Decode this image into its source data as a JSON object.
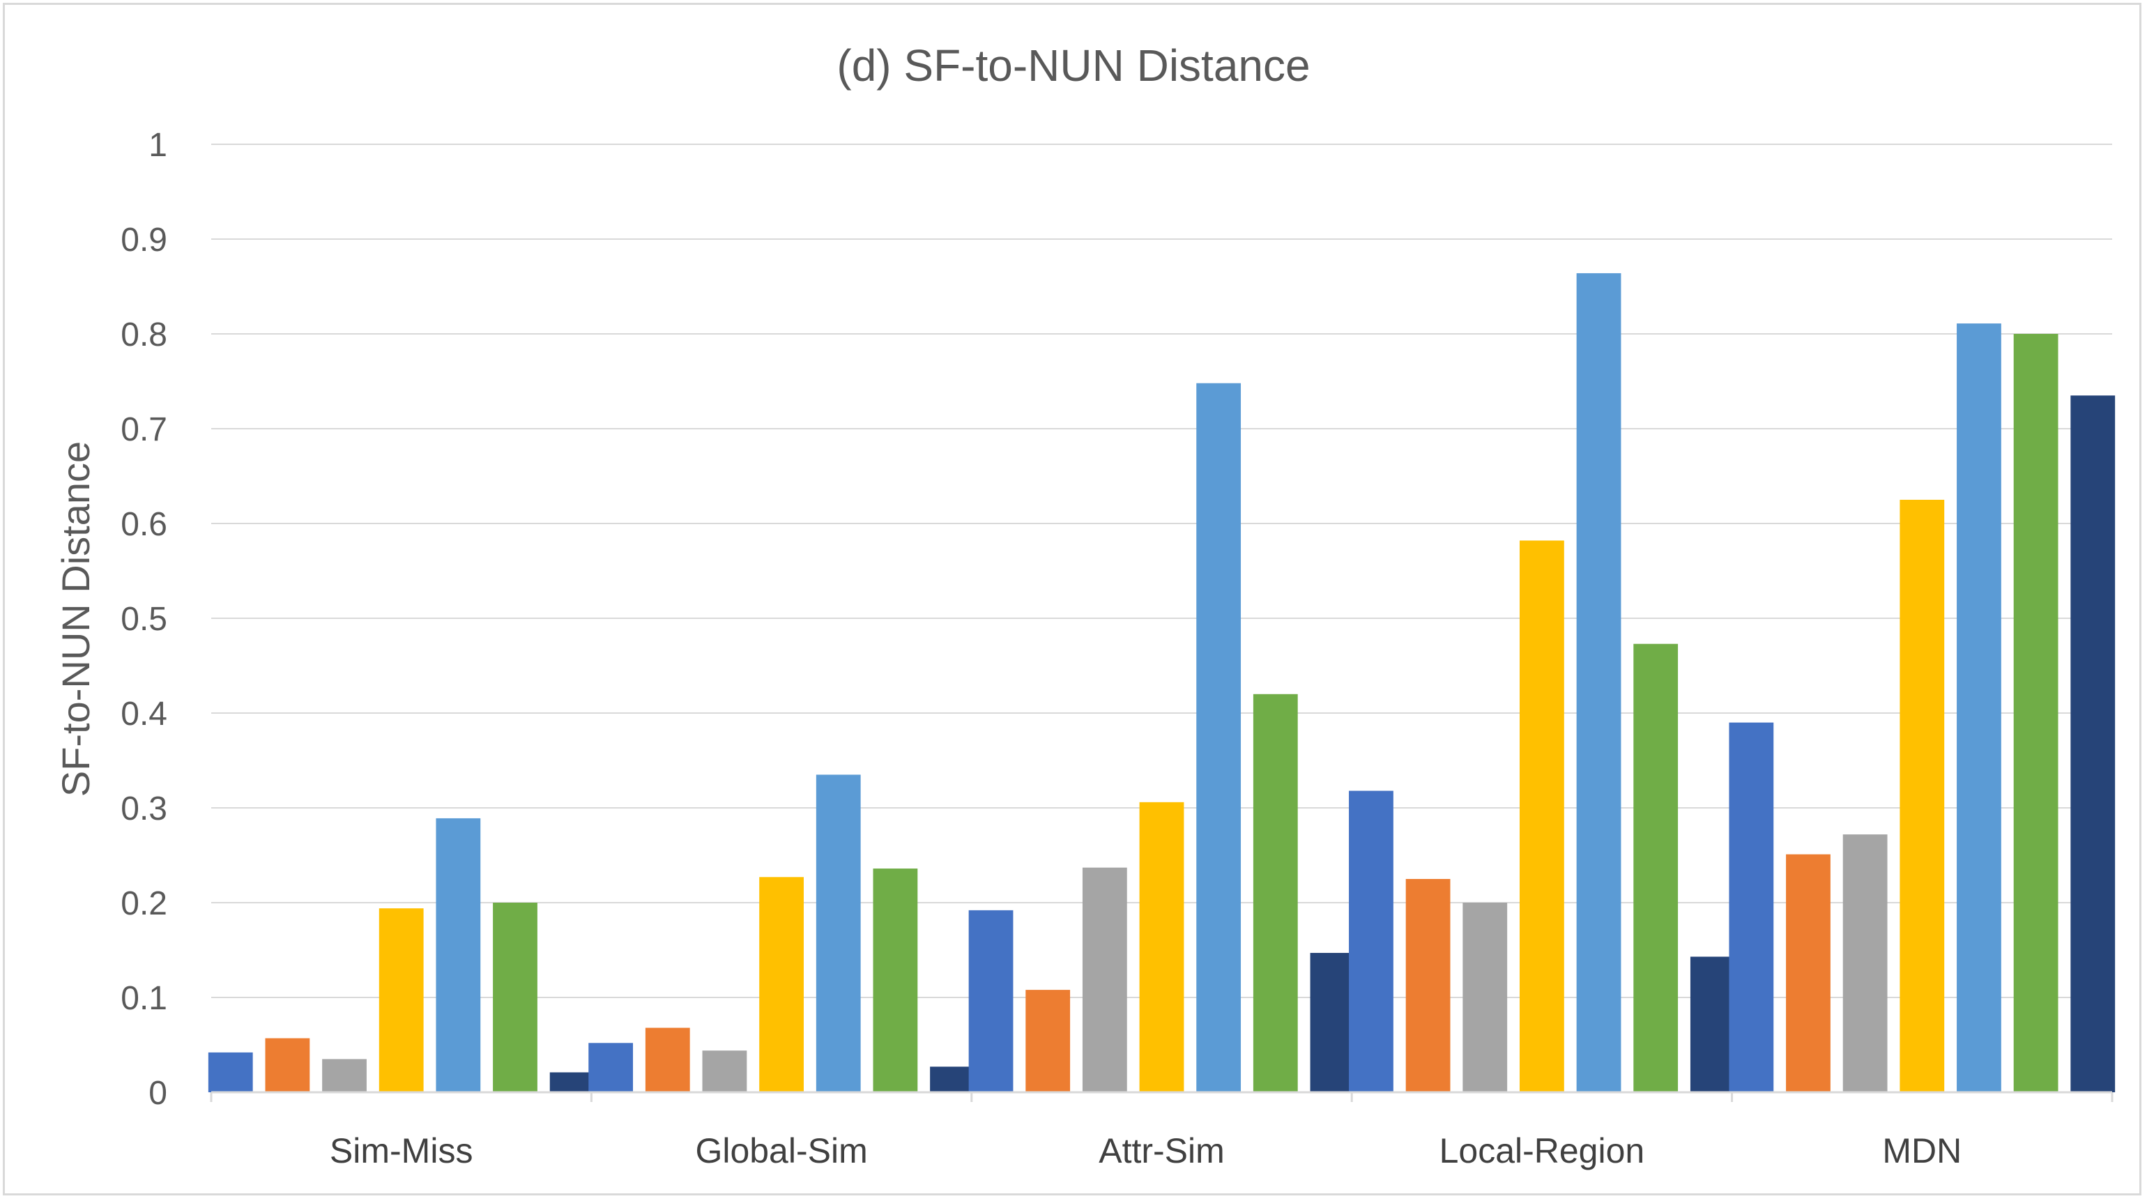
{
  "chart_data": {
    "type": "bar",
    "title": "(d) SF-to-NUN Distance",
    "xlabel": "",
    "ylabel": "SF-to-NUN Distance",
    "ylim": [
      0,
      1
    ],
    "yticks": [
      "0",
      "0.1",
      "0.2",
      "0.3",
      "0.4",
      "0.5",
      "0.6",
      "0.7",
      "0.8",
      "0.9",
      "1"
    ],
    "grid": true,
    "legend": "none",
    "categories": [
      "Sim-Miss",
      "Global-Sim",
      "Attr-Sim",
      "Local-Region",
      "MDN"
    ],
    "series": [
      {
        "color": "#4472c4",
        "values": [
          0.042,
          0.052,
          0.192,
          0.318,
          0.39
        ]
      },
      {
        "color": "#ed7d31",
        "values": [
          0.057,
          0.068,
          0.108,
          0.225,
          0.251
        ]
      },
      {
        "color": "#a5a5a5",
        "values": [
          0.035,
          0.044,
          0.237,
          0.2,
          0.272
        ]
      },
      {
        "color": "#ffc000",
        "values": [
          0.194,
          0.227,
          0.306,
          0.582,
          0.625
        ]
      },
      {
        "color": "#5b9bd5",
        "values": [
          0.289,
          0.335,
          0.748,
          0.864,
          0.811
        ]
      },
      {
        "color": "#70ad47",
        "values": [
          0.2,
          0.236,
          0.42,
          0.473,
          0.8
        ]
      },
      {
        "color": "#264478",
        "values": [
          0.021,
          0.027,
          0.147,
          0.143,
          0.735
        ]
      }
    ]
  }
}
